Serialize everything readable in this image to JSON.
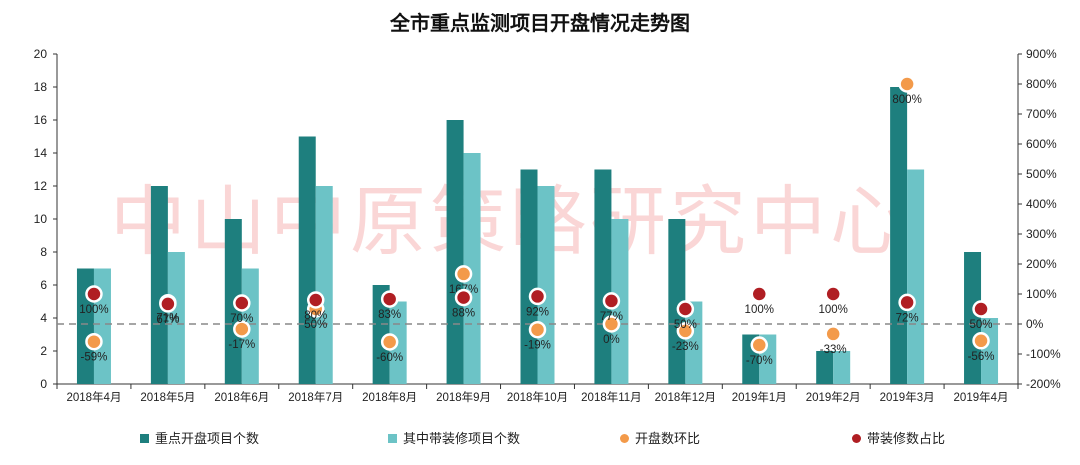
{
  "chart_data": {
    "type": "bar",
    "title": "全市重点监测项目开盘情况走势图",
    "watermark": "中山中原策略研究中心",
    "categories": [
      "2018年4月",
      "2018年5月",
      "2018年6月",
      "2018年7月",
      "2018年8月",
      "2018年9月",
      "2018年10月",
      "2018年11月",
      "2018年12月",
      "2019年1月",
      "2019年2月",
      "2019年3月",
      "2019年4月"
    ],
    "series": [
      {
        "name": "重点开盘项目个数",
        "axis": "left",
        "kind": "bar",
        "color": "#1e7f7e",
        "values": [
          7,
          12,
          10,
          15,
          6,
          16,
          13,
          13,
          10,
          3,
          2,
          18,
          8
        ]
      },
      {
        "name": "其中带装修项目个数",
        "axis": "left",
        "kind": "bar",
        "color": "#6cc3c6",
        "values": [
          7,
          8,
          7,
          12,
          5,
          14,
          12,
          10,
          5,
          3,
          2,
          13,
          4
        ]
      },
      {
        "name": "开盘数环比",
        "axis": "right",
        "kind": "marker",
        "color": "#f39a4a",
        "values": [
          -59,
          71,
          -17,
          50,
          -60,
          167,
          -19,
          0,
          -23,
          -70,
          -33,
          800,
          -56
        ],
        "labels": [
          "-59%",
          "71%",
          "-17%",
          "50%",
          "-60%",
          "167%",
          "-19%",
          "0%",
          "-23%",
          "-70%",
          "-33%",
          "800%",
          "-56%"
        ]
      },
      {
        "name": "带装修数占比",
        "axis": "right",
        "kind": "marker",
        "color": "#b01e23",
        "values": [
          100,
          67,
          70,
          80,
          83,
          88,
          92,
          77,
          50,
          100,
          100,
          72,
          50
        ],
        "labels": [
          "100%",
          "67%",
          "70%",
          "80%",
          "83%",
          "88%",
          "92%",
          "77%",
          "50%",
          "100%",
          "100%",
          "72%",
          "50%"
        ]
      }
    ],
    "y_left": {
      "min": 0,
      "max": 20,
      "ticks": [
        "0",
        "2",
        "4",
        "6",
        "8",
        "10",
        "12",
        "14",
        "16",
        "18",
        "20"
      ]
    },
    "y_right": {
      "min": -200,
      "max": 900,
      "ticks": [
        "-200%",
        "-100%",
        "0%",
        "100%",
        "200%",
        "300%",
        "400%",
        "500%",
        "600%",
        "700%",
        "800%",
        "900%"
      ]
    },
    "reference_line": {
      "axis": "right",
      "value": 0,
      "style": "dashed"
    },
    "grid": false,
    "legend_position": "bottom"
  }
}
